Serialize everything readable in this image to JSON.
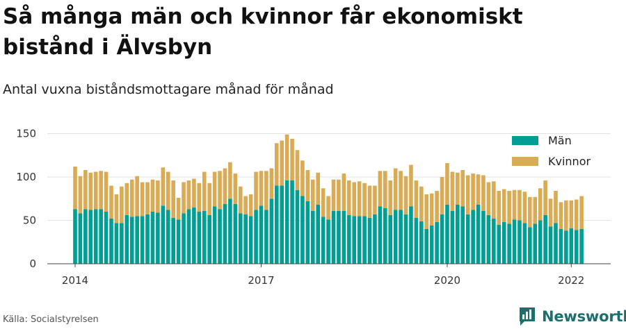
{
  "header": {
    "title": "Så många män och kvinnor får ekonomiskt bistånd i Älvsbyn",
    "subtitle": "Antal vuxna biståndsmottagare månad för månad"
  },
  "footer": {
    "source": "Källa: Socialstyrelsen",
    "brand": "Newsworthy"
  },
  "colors": {
    "men": "#009e93",
    "women": "#d9ab55",
    "grid": "#e2e2e2",
    "brand": "#1d6f6c"
  },
  "chart_data": {
    "type": "bar",
    "stacked": true,
    "x_ticks": [
      "2014",
      "2017",
      "2020",
      "2022"
    ],
    "y_ticks": [
      0,
      50,
      100,
      150
    ],
    "ylim": [
      0,
      160
    ],
    "legend_position": "top-right",
    "x_range": [
      "2014-01",
      "2022-04"
    ],
    "series": [
      {
        "name": "Män",
        "color": "#009e93",
        "values": [
          63,
          58,
          63,
          62,
          63,
          63,
          60,
          52,
          47,
          47,
          56,
          54,
          55,
          55,
          57,
          60,
          59,
          67,
          62,
          53,
          51,
          58,
          63,
          65,
          60,
          61,
          56,
          66,
          63,
          69,
          75,
          69,
          58,
          57,
          55,
          62,
          67,
          62,
          75,
          90,
          90,
          96,
          96,
          85,
          78,
          72,
          61,
          68,
          54,
          51,
          61,
          61,
          61,
          56,
          55,
          55,
          55,
          53,
          57,
          66,
          64,
          56,
          62,
          62,
          57,
          66,
          53,
          49,
          40,
          44,
          48,
          57,
          68,
          61,
          68,
          66,
          57,
          62,
          68,
          61,
          56,
          52,
          45,
          48,
          46,
          51,
          50,
          47,
          42,
          46,
          50,
          56,
          43,
          47,
          40,
          38,
          41,
          39,
          40
        ]
      },
      {
        "name": "Kvinnor",
        "values": [
          49,
          43,
          45,
          43,
          43,
          44,
          46,
          38,
          33,
          42,
          37,
          43,
          46,
          39,
          37,
          37,
          37,
          44,
          44,
          43,
          25,
          36,
          33,
          33,
          33,
          45,
          37,
          40,
          44,
          41,
          42,
          35,
          31,
          21,
          25,
          44,
          40,
          45,
          35,
          49,
          52,
          53,
          48,
          46,
          41,
          36,
          36,
          37,
          33,
          27,
          36,
          36,
          43,
          40,
          39,
          40,
          38,
          37,
          33,
          41,
          43,
          40,
          48,
          45,
          44,
          48,
          43,
          40,
          40,
          37,
          36,
          43,
          48,
          45,
          37,
          42,
          45,
          42,
          35,
          41,
          38,
          43,
          39,
          38,
          38,
          34,
          35,
          36,
          35,
          31,
          37,
          40,
          32,
          37,
          31,
          35,
          32,
          35,
          38
        ]
      }
    ]
  }
}
